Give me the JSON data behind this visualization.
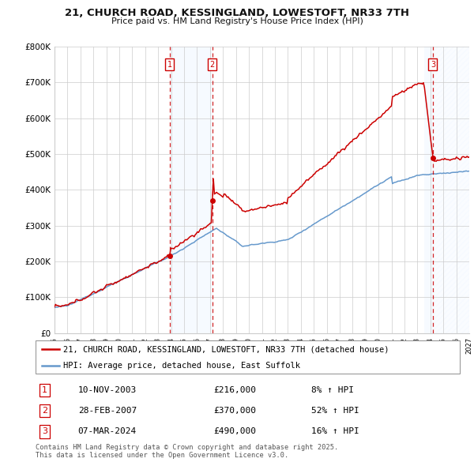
{
  "title": "21, CHURCH ROAD, KESSINGLAND, LOWESTOFT, NR33 7TH",
  "subtitle": "Price paid vs. HM Land Registry's House Price Index (HPI)",
  "ylim": [
    0,
    800000
  ],
  "xlim": [
    1995,
    2027
  ],
  "yticks": [
    0,
    100000,
    200000,
    300000,
    400000,
    500000,
    600000,
    700000,
    800000
  ],
  "ytick_labels": [
    "£0",
    "£100K",
    "£200K",
    "£300K",
    "£400K",
    "£500K",
    "£600K",
    "£700K",
    "£800K"
  ],
  "background_color": "#ffffff",
  "grid_color": "#cccccc",
  "red_color": "#cc0000",
  "blue_color": "#6699cc",
  "shade_color": "#ddeeff",
  "hatch_color": "#bbbbcc",
  "t1_year": 2003.87,
  "t1_price": 216000,
  "t2_year": 2007.17,
  "t2_price": 370000,
  "t3_year": 2024.19,
  "t3_price": 490000,
  "transactions": [
    {
      "num": 1,
      "date": "10-NOV-2003",
      "price": 216000,
      "year": 2003.87,
      "pct": "8%",
      "dir": "↑"
    },
    {
      "num": 2,
      "date": "28-FEB-2007",
      "price": 370000,
      "year": 2007.17,
      "pct": "52%",
      "dir": "↑"
    },
    {
      "num": 3,
      "date": "07-MAR-2024",
      "price": 490000,
      "year": 2024.19,
      "pct": "16%",
      "dir": "↑"
    }
  ],
  "legend_line1": "21, CHURCH ROAD, KESSINGLAND, LOWESTOFT, NR33 7TH (detached house)",
  "legend_line2": "HPI: Average price, detached house, East Suffolk",
  "footer1": "Contains HM Land Registry data © Crown copyright and database right 2025.",
  "footer2": "This data is licensed under the Open Government Licence v3.0."
}
